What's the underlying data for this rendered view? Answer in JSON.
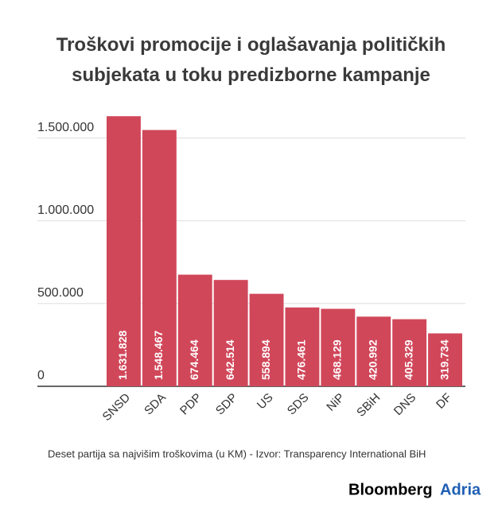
{
  "chart_data": {
    "type": "bar",
    "title": "Troškovi promocije i oglašavanja političkih subjekata u toku predizborne kampanje",
    "categories": [
      "SNSD",
      "SDA",
      "PDP",
      "SDP",
      "US",
      "SDS",
      "NiP",
      "SBiH",
      "DNS",
      "DF"
    ],
    "values": [
      1631828,
      1548467,
      674464,
      642514,
      558894,
      476461,
      468129,
      420992,
      405329,
      319734
    ],
    "value_labels": [
      "1.631.828",
      "1.548.467",
      "674.464",
      "642.514",
      "558.894",
      "476.461",
      "468.129",
      "420.992",
      "405.329",
      "319.734"
    ],
    "color": "#d1475a",
    "ylim": [
      0,
      1700000
    ],
    "yticks": [
      0,
      {
        "value": 500000,
        "label": "500.000"
      },
      {
        "value": 1000000,
        "label": "1.000.000"
      },
      {
        "value": 1500000,
        "label": "1.500.000"
      }
    ],
    "grid": true,
    "note": "Deset partija sa najvišim troškovima (u KM) - Izvor: Transparency International BiH"
  },
  "brand": {
    "name": "Bloomberg",
    "suffix": "Adria"
  }
}
